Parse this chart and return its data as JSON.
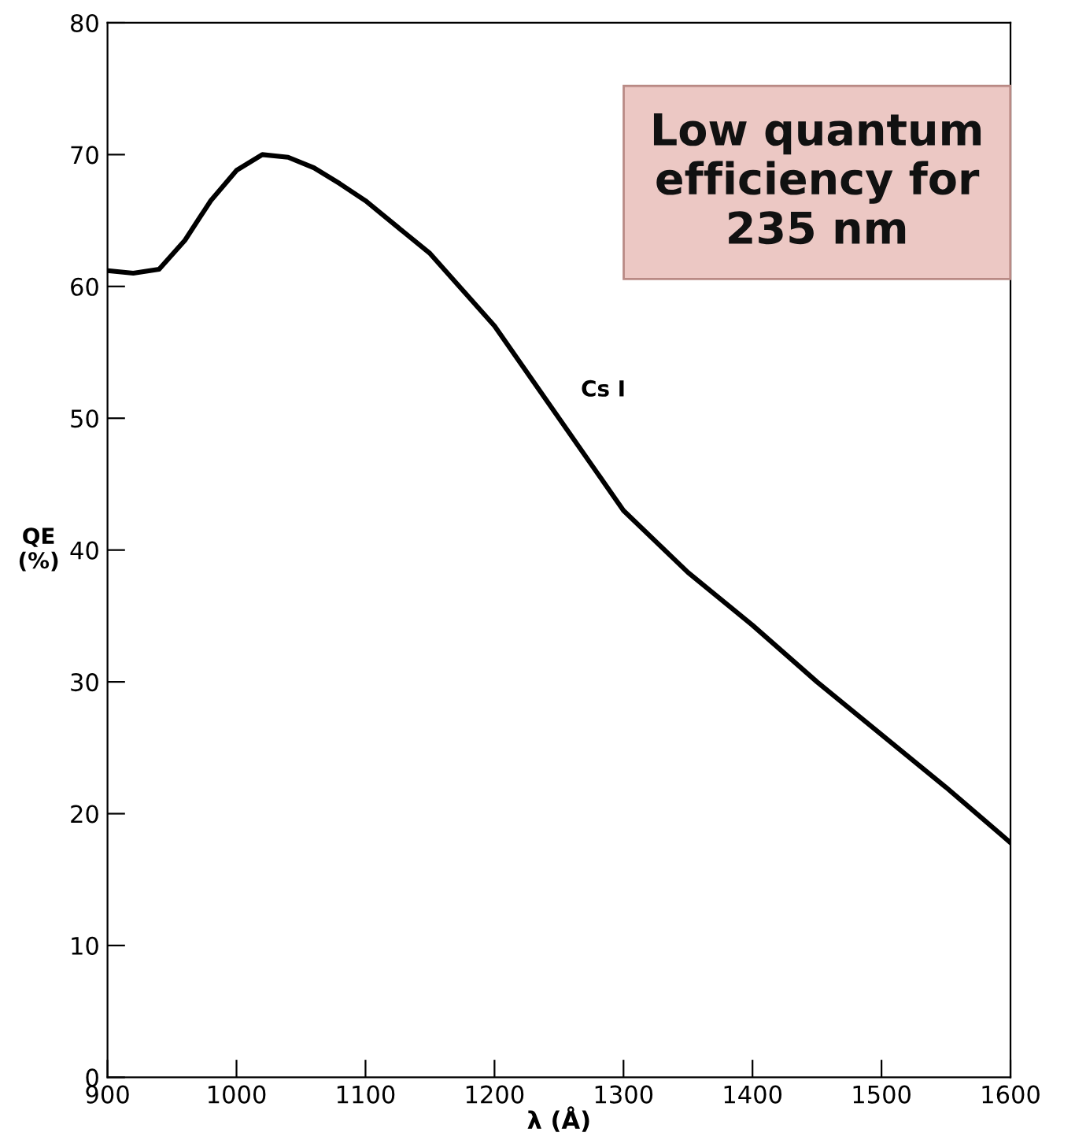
{
  "chart_data": {
    "type": "line",
    "xlabel": "λ (Å)",
    "ylabel": "QE\n(%)",
    "x": [
      900,
      920,
      940,
      960,
      980,
      1000,
      1020,
      1040,
      1060,
      1080,
      1100,
      1150,
      1200,
      1250,
      1300,
      1350,
      1400,
      1450,
      1500,
      1550,
      1600
    ],
    "series": [
      {
        "name": "Cs I",
        "color": "#000000",
        "values": [
          61.2,
          61,
          61.3,
          63.5,
          66.5,
          68.8,
          70,
          69.8,
          69,
          67.8,
          66.5,
          62.5,
          57,
          50,
          43,
          38.3,
          34.3,
          30,
          26,
          22,
          17.8
        ]
      }
    ],
    "xlim": [
      900,
      1600
    ],
    "ylim": [
      0,
      80
    ],
    "xticks": [
      900,
      1000,
      1100,
      1200,
      1300,
      1400,
      1500,
      1600
    ],
    "yticks": [
      0,
      10,
      20,
      30,
      40,
      50,
      60,
      70,
      80
    ],
    "grid": false,
    "legend": false,
    "marker": "none",
    "line_style": "solid",
    "annotations": [
      "Low quantum\nefficiency for\n235 nm"
    ]
  }
}
